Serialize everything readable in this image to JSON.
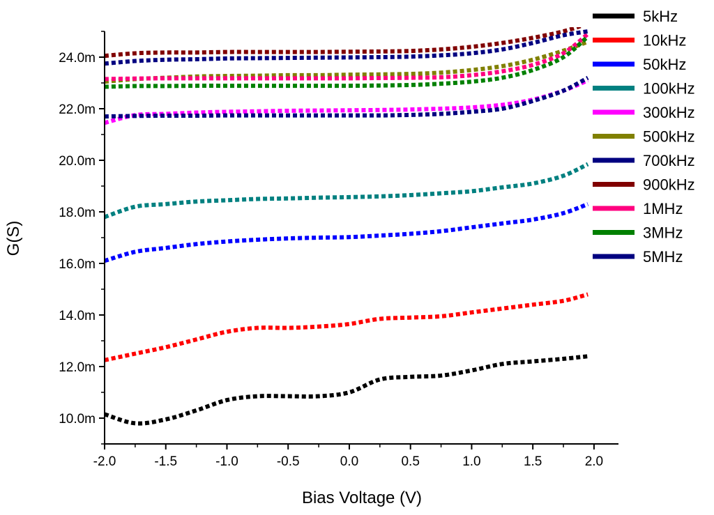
{
  "chart_data": {
    "type": "line",
    "title": "",
    "xlabel": "Bias Voltage (V)",
    "ylabel": "G(S)",
    "xlim": [
      -2.0,
      2.2
    ],
    "ylim": [
      9.0,
      25.0
    ],
    "x_ticks": [
      -2.0,
      -1.5,
      -1.0,
      -0.5,
      0.0,
      0.5,
      1.0,
      1.5,
      2.0
    ],
    "x_tick_labels": [
      "-2.0",
      "-1.5",
      "-1.0",
      "-0.5",
      "0.0",
      "0.5",
      "1.0",
      "1.5",
      "2.0"
    ],
    "y_ticks": [
      10,
      12,
      14,
      16,
      18,
      20,
      22,
      24
    ],
    "y_tick_labels": [
      "10.0m",
      "12.0m",
      "14.0m",
      "16.0m",
      "18.0m",
      "20.0m",
      "22.0m",
      "24.0m"
    ],
    "y_unit_note": "values in mS",
    "grid": false,
    "legend_position": "right",
    "line_style": "dotted",
    "x": [
      -2.0,
      -1.75,
      -1.5,
      -1.25,
      -1.0,
      -0.75,
      -0.5,
      -0.25,
      0.0,
      0.25,
      0.5,
      0.75,
      1.0,
      1.25,
      1.5,
      1.75,
      1.95
    ],
    "series": [
      {
        "name": "5kHz",
        "color": "#000000",
        "values": [
          10.15,
          9.8,
          9.95,
          10.3,
          10.7,
          10.85,
          10.85,
          10.85,
          11.0,
          11.5,
          11.6,
          11.65,
          11.85,
          12.1,
          12.2,
          12.3,
          12.4
        ]
      },
      {
        "name": "10kHz",
        "color": "#ff0000",
        "values": [
          12.25,
          12.5,
          12.75,
          13.05,
          13.35,
          13.5,
          13.5,
          13.55,
          13.65,
          13.85,
          13.9,
          13.95,
          14.1,
          14.25,
          14.4,
          14.55,
          14.8
        ]
      },
      {
        "name": "50kHz",
        "color": "#0000ff",
        "values": [
          16.1,
          16.45,
          16.6,
          16.75,
          16.85,
          16.92,
          16.97,
          17.0,
          17.02,
          17.08,
          17.15,
          17.25,
          17.4,
          17.55,
          17.7,
          17.95,
          18.3
        ]
      },
      {
        "name": "100kHz",
        "color": "#008080",
        "values": [
          17.8,
          18.2,
          18.3,
          18.4,
          18.45,
          18.5,
          18.52,
          18.55,
          18.57,
          18.6,
          18.65,
          18.72,
          18.8,
          18.95,
          19.1,
          19.4,
          19.85
        ]
      },
      {
        "name": "300kHz",
        "color": "#ff00ff",
        "values": [
          21.45,
          21.75,
          21.8,
          21.85,
          21.88,
          21.9,
          21.92,
          21.93,
          21.94,
          21.95,
          21.97,
          22.0,
          22.05,
          22.15,
          22.35,
          22.7,
          23.1
        ]
      },
      {
        "name": "500kHz",
        "color": "#808000",
        "values": [
          23.05,
          23.15,
          23.2,
          23.25,
          23.27,
          23.28,
          23.3,
          23.3,
          23.32,
          23.33,
          23.35,
          23.4,
          23.5,
          23.65,
          23.9,
          24.25,
          24.6
        ]
      },
      {
        "name": "700kHz",
        "color": "#000080",
        "values": [
          21.7,
          21.72,
          21.73,
          21.73,
          21.74,
          21.74,
          21.74,
          21.74,
          21.74,
          21.74,
          21.76,
          21.8,
          21.88,
          22.0,
          22.3,
          22.7,
          23.2
        ]
      },
      {
        "name": "900kHz",
        "color": "#800000",
        "values": [
          24.05,
          24.15,
          24.18,
          24.18,
          24.2,
          24.2,
          24.2,
          24.2,
          24.21,
          24.22,
          24.24,
          24.3,
          24.4,
          24.55,
          24.75,
          25.0,
          25.3
        ]
      },
      {
        "name": "1MHz",
        "color": "#ff007f",
        "values": [
          23.15,
          23.17,
          23.18,
          23.18,
          23.18,
          23.18,
          23.18,
          23.18,
          23.18,
          23.19,
          23.2,
          23.22,
          23.3,
          23.45,
          23.7,
          24.15,
          24.9
        ]
      },
      {
        "name": "3MHz",
        "color": "#008000",
        "values": [
          22.85,
          22.88,
          22.88,
          22.89,
          22.89,
          22.89,
          22.89,
          22.89,
          22.89,
          22.9,
          22.92,
          22.97,
          23.05,
          23.2,
          23.5,
          24.0,
          24.8
        ]
      },
      {
        "name": "5MHz",
        "color": "#000080",
        "values": [
          23.75,
          23.85,
          23.9,
          23.92,
          23.95,
          23.96,
          23.97,
          23.98,
          23.99,
          24.0,
          24.02,
          24.07,
          24.15,
          24.3,
          24.55,
          24.85,
          25.0
        ]
      }
    ]
  }
}
